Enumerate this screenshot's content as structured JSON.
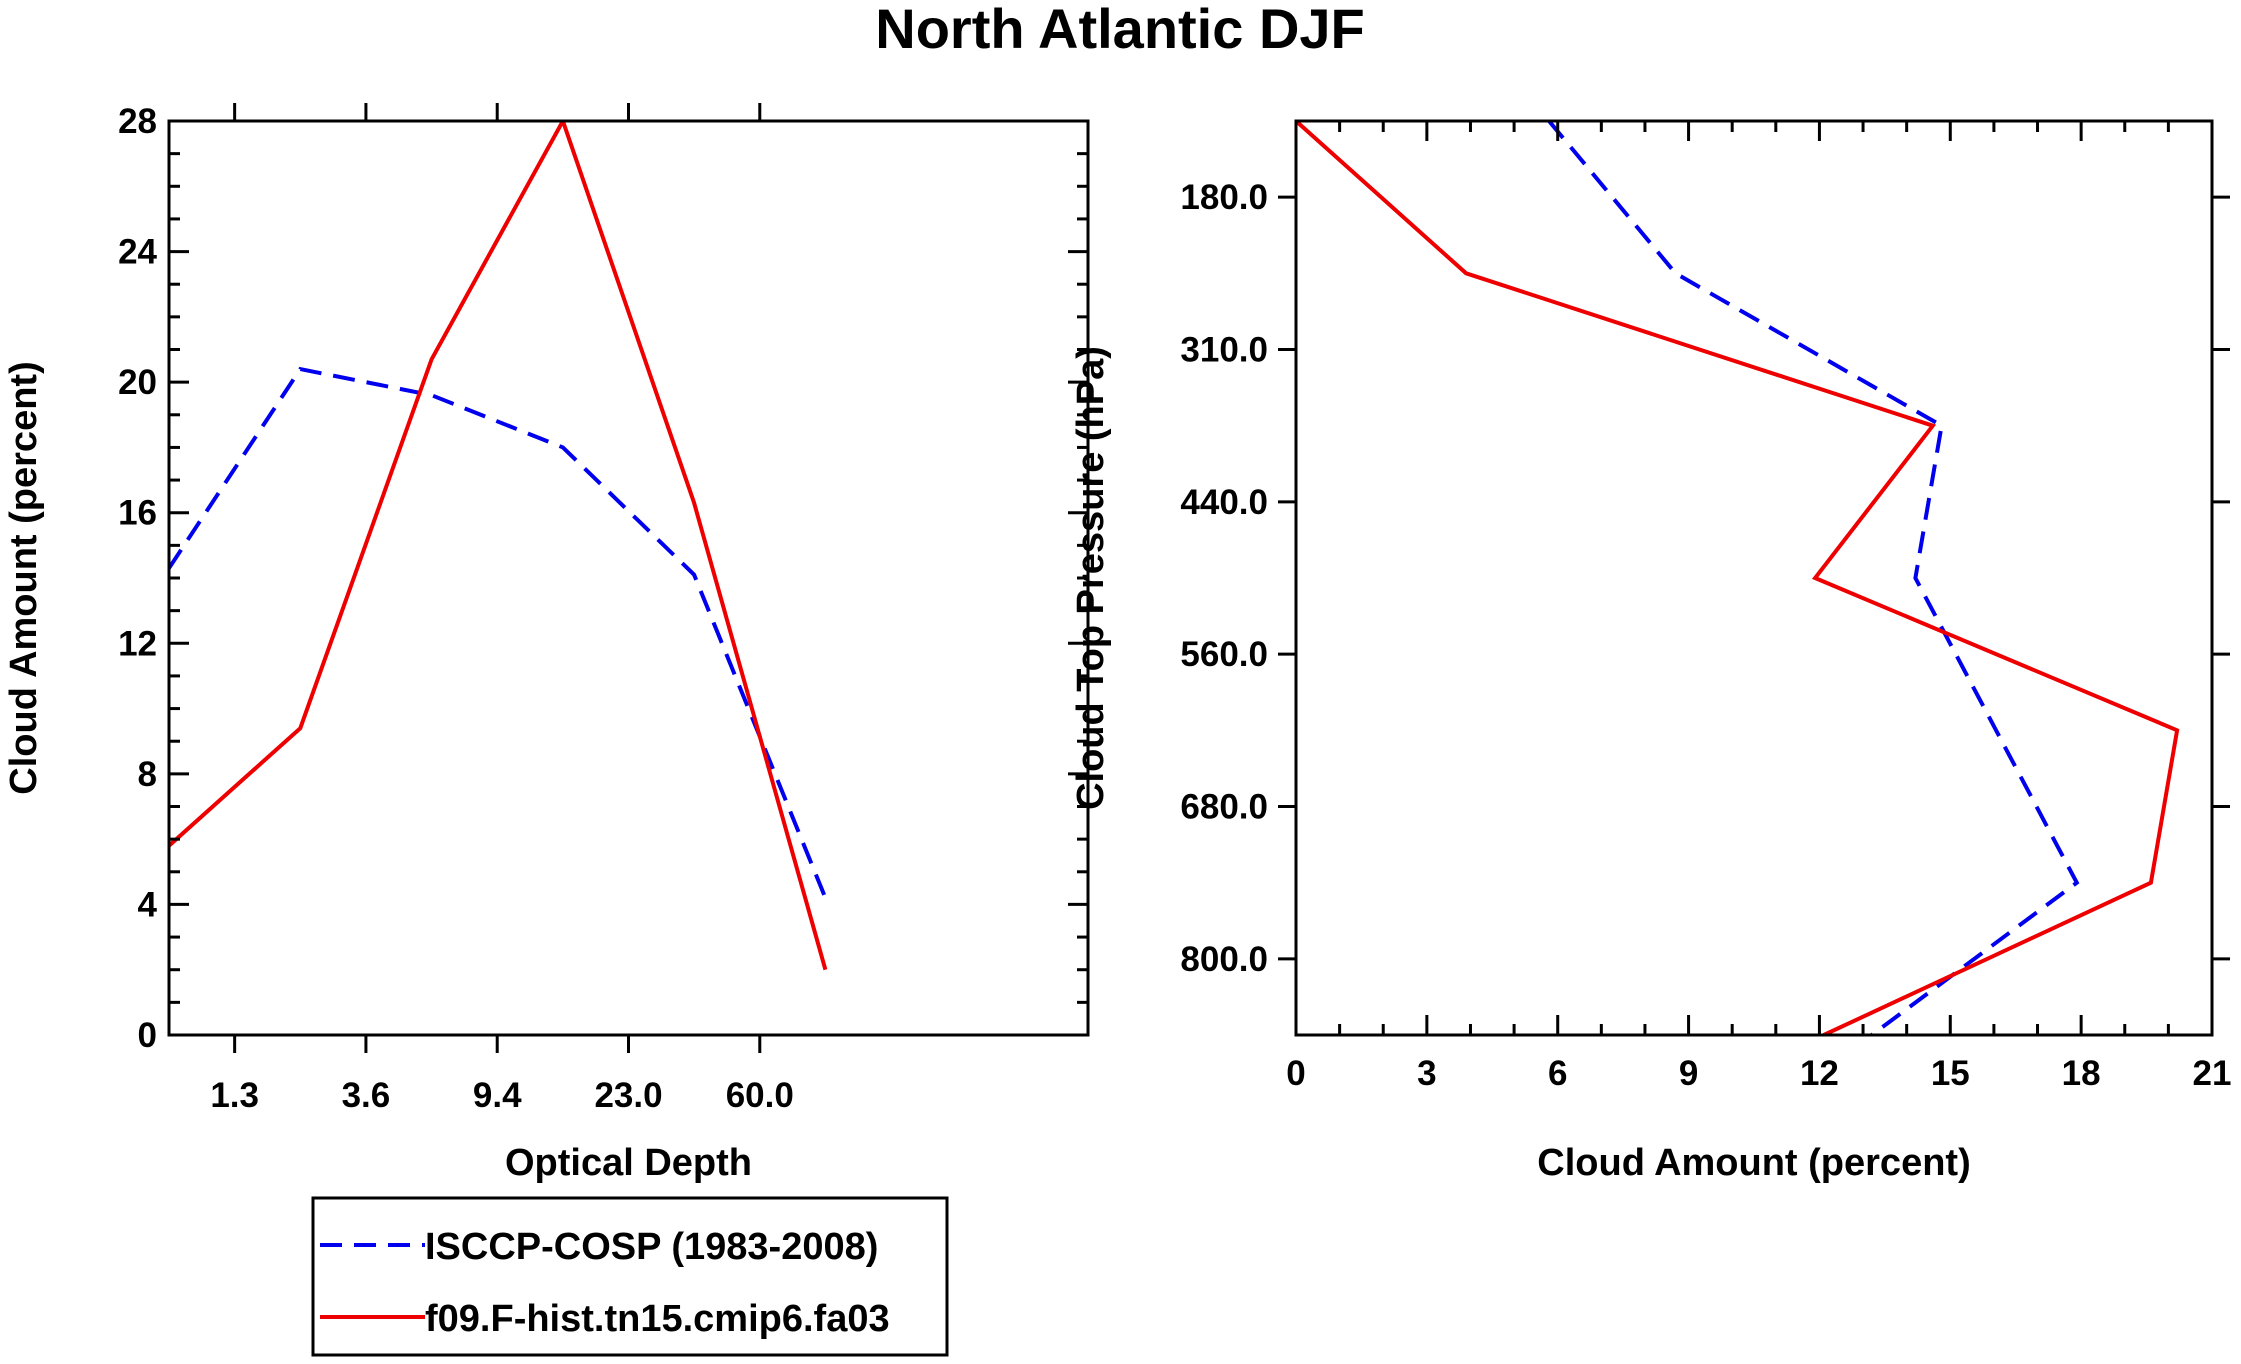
{
  "title": "North Atlantic DJF",
  "colors": {
    "isccp": "#0000ee",
    "model": "#ee0000",
    "axis": "#000000"
  },
  "legend": {
    "entries": [
      {
        "label": "ISCCP-COSP (1983-2008)",
        "color": "#0000ee",
        "dash": "dashed"
      },
      {
        "label": "f09.F-hist.tn15.cmip6.fa03",
        "color": "#ee0000",
        "dash": "solid"
      }
    ]
  },
  "chart_data": [
    {
      "type": "line",
      "title": "",
      "xlabel": "Optical Depth",
      "ylabel": "Cloud Amount (percent)",
      "xlim": [
        0,
        7
      ],
      "ylim": [
        0,
        28
      ],
      "x_ticks": [
        {
          "pos": 0.5,
          "label": "1.3"
        },
        {
          "pos": 1.5,
          "label": "3.6"
        },
        {
          "pos": 2.5,
          "label": "9.4"
        },
        {
          "pos": 3.5,
          "label": "23.0"
        },
        {
          "pos": 4.5,
          "label": "60.0"
        }
      ],
      "y_ticks": [
        "0",
        "4",
        "8",
        "12",
        "16",
        "20",
        "24",
        "28"
      ],
      "x": [
        0,
        1,
        2,
        3,
        4,
        5
      ],
      "series": [
        {
          "name": "ISCCP-COSP (1983-2008)",
          "values": [
            14.3,
            20.4,
            19.6,
            18.0,
            14.1,
            4.2
          ]
        },
        {
          "name": "f09.F-hist.tn15.cmip6.fa03",
          "values": [
            5.8,
            9.4,
            20.7,
            28.0,
            16.3,
            2.0
          ]
        }
      ]
    },
    {
      "type": "line",
      "title": "",
      "xlabel": "Cloud Amount (percent)",
      "ylabel": "Cloud Top Pressure (hPa)",
      "xlim": [
        0,
        21
      ],
      "ylim": [
        120,
        840
      ],
      "x_ticks": [
        "0",
        "3",
        "6",
        "9",
        "12",
        "15",
        "18",
        "21"
      ],
      "y_ticks": [
        "180.0",
        "310.0",
        "440.0",
        "560.0",
        "680.0",
        "800.0"
      ],
      "y_tick_values": [
        180,
        300,
        420,
        540,
        660,
        780
      ],
      "series": [
        {
          "name": "ISCCP-COSP (1983-2008)",
          "x": [
            5.8,
            8.7,
            14.8,
            14.2,
            17.9,
            13.2
          ],
          "y": [
            120,
            240,
            360,
            480,
            720,
            840
          ]
        },
        {
          "name": "f09.F-hist.tn15.cmip6.fa03",
          "x": [
            0.0,
            3.9,
            14.6,
            11.9,
            20.2,
            19.6,
            12.1
          ],
          "y": [
            120,
            240,
            360,
            480,
            600,
            720,
            840
          ]
        }
      ]
    }
  ]
}
